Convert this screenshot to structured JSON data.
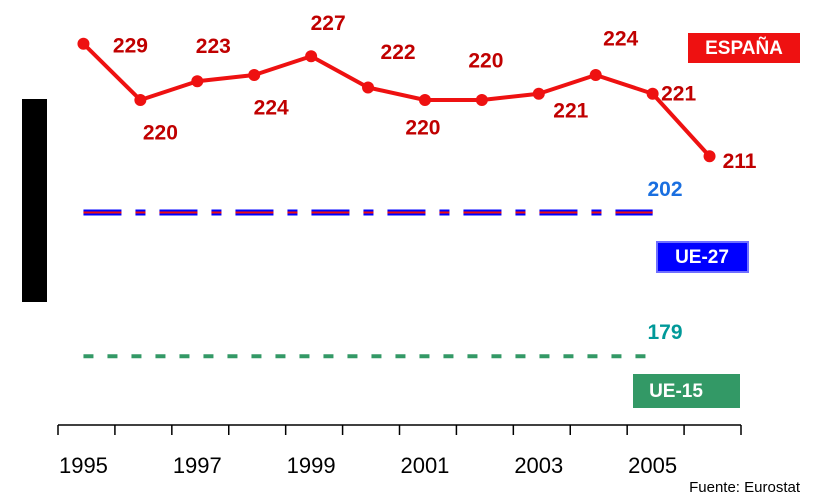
{
  "chart_data": {
    "type": "line",
    "categories": [
      "1995",
      null,
      "1997",
      null,
      "1999",
      null,
      "2001",
      null,
      "2003",
      null,
      "2005",
      null
    ],
    "series": [
      {
        "name": "ESPAÑA",
        "color": "#ee1111",
        "values": [
          229,
          220,
          223,
          224,
          227,
          222,
          220,
          220,
          221,
          224,
          221,
          211
        ]
      },
      {
        "name": "UE-27",
        "color": "#0000ff",
        "values": [
          202,
          202,
          202,
          202,
          202,
          202,
          202,
          202,
          202,
          202,
          202,
          null
        ]
      },
      {
        "name": "UE-15",
        "color": "#339966",
        "values": [
          179,
          179,
          179,
          179,
          179,
          179,
          179,
          179,
          179,
          179,
          179,
          null
        ]
      }
    ],
    "ylim": [
      168,
      236
    ],
    "source": "Fuente: Eurostat"
  }
}
